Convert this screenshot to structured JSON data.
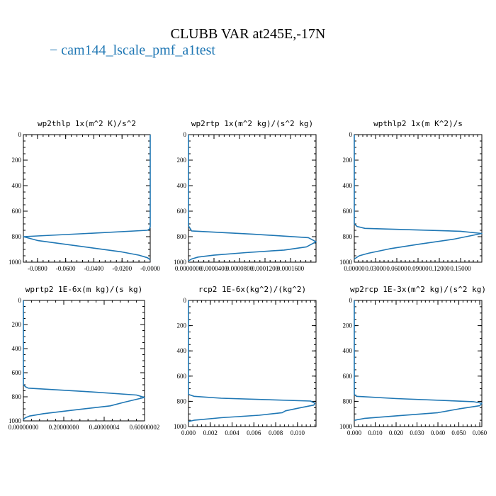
{
  "figure": {
    "title": "CLUBB VAR at245E,-17N",
    "legend": {
      "label": "− cam144_lscale_pmf_a1test",
      "color": "#1f77b4"
    }
  },
  "chart_data": [
    {
      "type": "line",
      "title": "wp2thlp  1x(m^2 K)/s^2",
      "xlim": [
        -0.09,
        0.0
      ],
      "xticks": [
        -0.08,
        -0.06,
        -0.04,
        -0.02,
        -0.0
      ],
      "xticklabels": [
        "-0.0800",
        "-0.0600",
        "-0.0400",
        "-0.0200",
        "-0.0000"
      ],
      "ylim": [
        1000,
        0
      ],
      "yticks": [
        0,
        200,
        400,
        600,
        800,
        1000
      ],
      "yticklabels": [
        "0",
        "200",
        "400",
        "600",
        "800",
        "1000"
      ],
      "series": [
        {
          "color": "#1f77b4",
          "x": [
            0,
            0,
            -0.0005,
            -0.002,
            -0.045,
            -0.09,
            -0.08,
            -0.06,
            -0.04,
            -0.02,
            -0.008,
            -0.002,
            0
          ],
          "y": [
            0,
            720,
            740,
            750,
            775,
            800,
            830,
            860,
            890,
            920,
            945,
            965,
            980
          ]
        }
      ]
    },
    {
      "type": "line",
      "title": "wp2rtp  1x(m^2 kg)/(s^2 kg)",
      "xlim": [
        0.0,
        0.0002
      ],
      "xticks": [
        0.0,
        4e-05,
        8e-05,
        0.00012,
        0.00016
      ],
      "xticklabels": [
        "0.0000000",
        "0.0000400",
        "0.0000800",
        "0.0001200",
        "0.0001600"
      ],
      "ylim": [
        1000,
        0
      ],
      "yticks": [
        0,
        200,
        400,
        600,
        800,
        1000
      ],
      "yticklabels": [
        "0",
        "200",
        "400",
        "600",
        "800",
        "1000"
      ],
      "series": [
        {
          "color": "#1f77b4",
          "x": [
            0,
            0,
            5e-06,
            0.0001,
            0.000188,
            0.0002,
            0.000185,
            0.00015,
            9e-05,
            4e-05,
            1.5e-05,
            5e-06,
            0
          ],
          "y": [
            0,
            715,
            755,
            780,
            808,
            840,
            880,
            905,
            925,
            945,
            960,
            975,
            990
          ]
        }
      ]
    },
    {
      "type": "line",
      "title": "wpthlp2  1x(m K^2)/s",
      "xlim": [
        0.0,
        0.18
      ],
      "xticks": [
        0.0,
        0.03,
        0.06,
        0.09,
        0.12,
        0.15
      ],
      "xticklabels": [
        "0.00000",
        "0.03000",
        "0.06000",
        "0.09000",
        "0.12000",
        "0.15000"
      ],
      "ylim": [
        1000,
        0
      ],
      "yticks": [
        0,
        200,
        400,
        600,
        800,
        1000
      ],
      "yticklabels": [
        "0",
        "200",
        "400",
        "600",
        "800",
        "1000"
      ],
      "series": [
        {
          "color": "#1f77b4",
          "x": [
            0,
            0,
            0.004,
            0.015,
            0.15,
            0.18,
            0.14,
            0.09,
            0.05,
            0.02,
            0.007,
            0
          ],
          "y": [
            0,
            700,
            720,
            735,
            758,
            775,
            820,
            860,
            895,
            930,
            950,
            975
          ]
        }
      ]
    },
    {
      "type": "line",
      "title": "wprtp2  1E-6x(m kg)/(s kg)",
      "xlim": [
        0.0,
        0.60000002
      ],
      "xticks": [
        0.0,
        0.2,
        0.4,
        0.6
      ],
      "xticklabels": [
        "0.00000000",
        "0.20000000",
        "0.40000004",
        "0.60000002"
      ],
      "ylim": [
        1000,
        0
      ],
      "yticks": [
        0,
        200,
        400,
        600,
        800,
        1000
      ],
      "yticklabels": [
        "0",
        "200",
        "400",
        "600",
        "800",
        "1000"
      ],
      "series": [
        {
          "color": "#1f77b4",
          "x": [
            0,
            0,
            0.012,
            0.025,
            0.3,
            0.56,
            0.6,
            0.5,
            0.43,
            0.25,
            0.1,
            0.03,
            0.008,
            0
          ],
          "y": [
            0,
            700,
            718,
            728,
            755,
            785,
            805,
            845,
            875,
            910,
            940,
            960,
            975,
            990
          ]
        }
      ]
    },
    {
      "type": "line",
      "title": "rcp2  1E-6x(kg^2)/(kg^2)",
      "xlim": [
        0.0,
        0.0117
      ],
      "xticks": [
        0.0,
        0.002,
        0.004,
        0.006,
        0.008,
        0.01
      ],
      "xticklabels": [
        "0.000",
        "0.002",
        "0.004",
        "0.006",
        "0.008",
        "0.010"
      ],
      "ylim": [
        1000,
        0
      ],
      "yticks": [
        0,
        200,
        400,
        600,
        800,
        1000
      ],
      "yticklabels": [
        "0",
        "200",
        "400",
        "600",
        "800",
        "1000"
      ],
      "series": [
        {
          "color": "#1f77b4",
          "x": [
            0,
            0,
            0.0005,
            0.003,
            0.0112,
            0.0116,
            0.0115,
            0.0103,
            0.0089,
            0.0086,
            0.0065,
            0.003,
            0.0005,
            0
          ],
          "y": [
            0,
            745,
            760,
            775,
            798,
            815,
            830,
            850,
            875,
            890,
            910,
            930,
            950,
            960
          ]
        }
      ]
    },
    {
      "type": "line",
      "title": "wp2rcp  1E-3x(m^2 kg)/(s^2 kg)",
      "xlim": [
        0.0,
        0.061
      ],
      "xticks": [
        0.0,
        0.01,
        0.02,
        0.03,
        0.04,
        0.05,
        0.06
      ],
      "xticklabels": [
        "0.000",
        "0.010",
        "0.020",
        "0.030",
        "0.040",
        "0.050",
        "0.060"
      ],
      "ylim": [
        1000,
        0
      ],
      "yticks": [
        0,
        200,
        400,
        600,
        800,
        1000
      ],
      "yticklabels": [
        "0",
        "200",
        "400",
        "600",
        "800",
        "1000"
      ],
      "series": [
        {
          "color": "#1f77b4",
          "x": [
            0,
            0,
            0.001,
            0.02,
            0.057,
            0.061,
            0.06,
            0.05,
            0.04,
            0.02,
            0.005,
            0
          ],
          "y": [
            0,
            745,
            760,
            778,
            803,
            815,
            835,
            860,
            890,
            915,
            935,
            950
          ]
        }
      ]
    }
  ]
}
